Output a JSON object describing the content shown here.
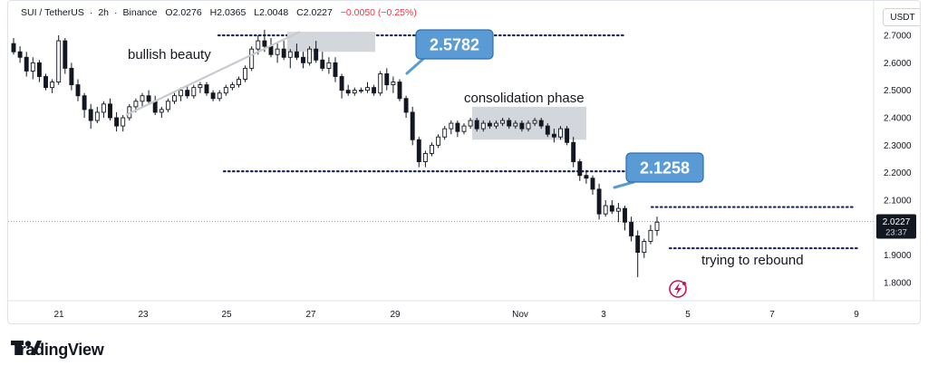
{
  "header": {
    "symbol": "SUI / TetherUS",
    "interval": "2h",
    "exchange": "Binance",
    "open": "O2.0276",
    "high": "H2.0365",
    "low": "L2.0048",
    "close": "C2.0227",
    "change": "−0.0050 (−0.25%)",
    "change_color": "#f23645"
  },
  "currency_button": "USDT",
  "brand": "TradingView",
  "chart_data": {
    "type": "candlestick",
    "x_tick_labels": [
      "21",
      "23",
      "25",
      "27",
      "29",
      "Nov",
      "3",
      "5",
      "7",
      "9"
    ],
    "y_tick_labels": [
      "2.7000",
      "2.6000",
      "2.5000",
      "2.4000",
      "2.3000",
      "2.2000",
      "2.1000",
      "2.0000",
      "1.9000",
      "1.8000"
    ],
    "ylim": [
      1.75,
      2.76
    ],
    "last_price": "2.0227",
    "countdown": "23:37",
    "annotations": {
      "bullish": "bullish beauty",
      "consolidation": "consolidation phase",
      "rebound": "trying to rebound",
      "resistance_label": "2.5782",
      "breakdown_label": "2.1258"
    },
    "levels": {
      "top_resistance": 2.7,
      "mid_support": 2.205,
      "lower_resistance": 2.075,
      "lower_support": 1.925
    },
    "colors": {
      "up": "#22ab94",
      "down": "#f23645",
      "candle": "#131722",
      "box": "#d3d6da",
      "callout": "#5b9bd5",
      "trend": "#c8cacf"
    },
    "candles": [
      [
        2.67,
        2.69,
        2.63,
        2.64
      ],
      [
        2.64,
        2.66,
        2.6,
        2.62
      ],
      [
        2.62,
        2.64,
        2.55,
        2.57
      ],
      [
        2.57,
        2.62,
        2.54,
        2.6
      ],
      [
        2.6,
        2.61,
        2.53,
        2.55
      ],
      [
        2.55,
        2.56,
        2.5,
        2.51
      ],
      [
        2.51,
        2.54,
        2.49,
        2.53
      ],
      [
        2.53,
        2.7,
        2.52,
        2.68
      ],
      [
        2.68,
        2.69,
        2.56,
        2.58
      ],
      [
        2.58,
        2.6,
        2.5,
        2.52
      ],
      [
        2.52,
        2.54,
        2.46,
        2.48
      ],
      [
        2.48,
        2.49,
        2.4,
        2.43
      ],
      [
        2.43,
        2.45,
        2.36,
        2.39
      ],
      [
        2.39,
        2.44,
        2.38,
        2.42
      ],
      [
        2.42,
        2.46,
        2.4,
        2.45
      ],
      [
        2.45,
        2.47,
        2.39,
        2.4
      ],
      [
        2.4,
        2.42,
        2.35,
        2.37
      ],
      [
        2.37,
        2.41,
        2.35,
        2.4
      ],
      [
        2.4,
        2.45,
        2.39,
        2.44
      ],
      [
        2.44,
        2.47,
        2.42,
        2.46
      ],
      [
        2.46,
        2.49,
        2.44,
        2.48
      ],
      [
        2.48,
        2.5,
        2.45,
        2.46
      ],
      [
        2.46,
        2.48,
        2.41,
        2.42
      ],
      [
        2.42,
        2.44,
        2.4,
        2.43
      ],
      [
        2.43,
        2.47,
        2.42,
        2.46
      ],
      [
        2.46,
        2.49,
        2.45,
        2.48
      ],
      [
        2.48,
        2.51,
        2.46,
        2.5
      ],
      [
        2.5,
        2.52,
        2.47,
        2.48
      ],
      [
        2.48,
        2.52,
        2.47,
        2.51
      ],
      [
        2.51,
        2.53,
        2.49,
        2.52
      ],
      [
        2.52,
        2.53,
        2.48,
        2.49
      ],
      [
        2.49,
        2.5,
        2.46,
        2.47
      ],
      [
        2.47,
        2.5,
        2.46,
        2.49
      ],
      [
        2.49,
        2.52,
        2.48,
        2.51
      ],
      [
        2.51,
        2.53,
        2.5,
        2.52
      ],
      [
        2.52,
        2.55,
        2.51,
        2.54
      ],
      [
        2.54,
        2.59,
        2.53,
        2.58
      ],
      [
        2.58,
        2.66,
        2.57,
        2.65
      ],
      [
        2.65,
        2.7,
        2.63,
        2.68
      ],
      [
        2.68,
        2.72,
        2.64,
        2.66
      ],
      [
        2.66,
        2.69,
        2.62,
        2.63
      ],
      [
        2.63,
        2.67,
        2.6,
        2.65
      ],
      [
        2.65,
        2.68,
        2.61,
        2.62
      ],
      [
        2.62,
        2.65,
        2.58,
        2.64
      ],
      [
        2.64,
        2.67,
        2.61,
        2.62
      ],
      [
        2.62,
        2.64,
        2.58,
        2.6
      ],
      [
        2.6,
        2.66,
        2.59,
        2.65
      ],
      [
        2.65,
        2.68,
        2.6,
        2.61
      ],
      [
        2.61,
        2.64,
        2.57,
        2.58
      ],
      [
        2.58,
        2.62,
        2.56,
        2.6
      ],
      [
        2.6,
        2.62,
        2.53,
        2.55
      ],
      [
        2.55,
        2.56,
        2.47,
        2.5
      ],
      [
        2.5,
        2.52,
        2.48,
        2.49
      ],
      [
        2.49,
        2.51,
        2.48,
        2.5
      ],
      [
        2.5,
        2.51,
        2.49,
        2.5
      ],
      [
        2.5,
        2.53,
        2.49,
        2.51
      ],
      [
        2.51,
        2.52,
        2.48,
        2.49
      ],
      [
        2.49,
        2.57,
        2.48,
        2.56
      ],
      [
        2.56,
        2.58,
        2.5,
        2.52
      ],
      [
        2.52,
        2.55,
        2.49,
        2.53
      ],
      [
        2.53,
        2.54,
        2.46,
        2.47
      ],
      [
        2.47,
        2.48,
        2.4,
        2.42
      ],
      [
        2.42,
        2.44,
        2.3,
        2.32
      ],
      [
        2.32,
        2.33,
        2.22,
        2.24
      ],
      [
        2.24,
        2.28,
        2.22,
        2.27
      ],
      [
        2.27,
        2.31,
        2.26,
        2.3
      ],
      [
        2.3,
        2.34,
        2.29,
        2.33
      ],
      [
        2.33,
        2.37,
        2.32,
        2.36
      ],
      [
        2.36,
        2.39,
        2.34,
        2.38
      ],
      [
        2.38,
        2.39,
        2.33,
        2.35
      ],
      [
        2.35,
        2.38,
        2.34,
        2.37
      ],
      [
        2.37,
        2.4,
        2.36,
        2.39
      ],
      [
        2.39,
        2.4,
        2.35,
        2.36
      ],
      [
        2.36,
        2.39,
        2.35,
        2.38
      ],
      [
        2.38,
        2.39,
        2.36,
        2.37
      ],
      [
        2.37,
        2.39,
        2.36,
        2.38
      ],
      [
        2.38,
        2.4,
        2.37,
        2.39
      ],
      [
        2.39,
        2.4,
        2.36,
        2.37
      ],
      [
        2.37,
        2.39,
        2.36,
        2.38
      ],
      [
        2.38,
        2.39,
        2.35,
        2.36
      ],
      [
        2.36,
        2.39,
        2.35,
        2.38
      ],
      [
        2.38,
        2.4,
        2.37,
        2.39
      ],
      [
        2.39,
        2.4,
        2.36,
        2.37
      ],
      [
        2.37,
        2.38,
        2.33,
        2.34
      ],
      [
        2.34,
        2.36,
        2.31,
        2.33
      ],
      [
        2.33,
        2.37,
        2.32,
        2.36
      ],
      [
        2.36,
        2.37,
        2.3,
        2.31
      ],
      [
        2.31,
        2.33,
        2.22,
        2.24
      ],
      [
        2.24,
        2.25,
        2.17,
        2.19
      ],
      [
        2.19,
        2.21,
        2.16,
        2.18
      ],
      [
        2.18,
        2.19,
        2.12,
        2.14
      ],
      [
        2.14,
        2.16,
        2.03,
        2.05
      ],
      [
        2.05,
        2.1,
        2.04,
        2.08
      ],
      [
        2.08,
        2.1,
        2.05,
        2.06
      ],
      [
        2.06,
        2.09,
        2.02,
        2.07
      ],
      [
        2.07,
        2.08,
        1.99,
        2.02
      ],
      [
        2.02,
        2.04,
        1.95,
        1.97
      ],
      [
        1.97,
        1.99,
        1.82,
        1.91
      ],
      [
        1.91,
        1.96,
        1.89,
        1.95
      ],
      [
        1.95,
        2.01,
        1.94,
        1.99
      ],
      [
        1.99,
        2.04,
        1.97,
        2.02
      ]
    ]
  }
}
